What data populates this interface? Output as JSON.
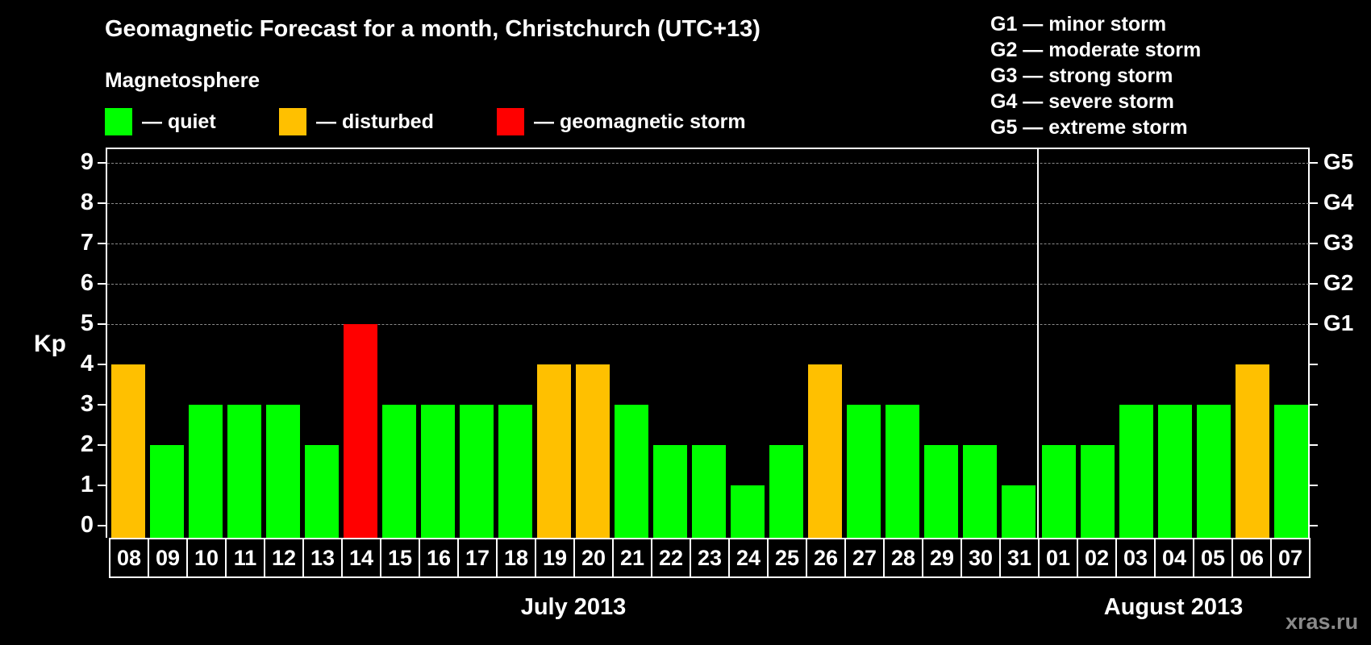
{
  "header": {
    "title": "Geomagnetic Forecast for a month, Christchurch (UTC+13)",
    "subtitle": "Magnetosphere"
  },
  "legend": [
    {
      "label": "— quiet",
      "color": "#00ff00"
    },
    {
      "label": "— disturbed",
      "color": "#ffc000"
    },
    {
      "label": "— geomagnetic storm",
      "color": "#ff0000"
    }
  ],
  "storm_scale": [
    "G1 — minor storm",
    "G2 — moderate storm",
    "G3 — strong storm",
    "G4 — severe storm",
    "G5 — extreme storm"
  ],
  "watermark": "xras.ru",
  "chart_data": {
    "type": "bar",
    "title": "Geomagnetic Forecast for a month, Christchurch (UTC+13)",
    "xlabel": "",
    "ylabel": "Kp",
    "ylim": [
      0,
      9
    ],
    "yticks": [
      0,
      1,
      2,
      3,
      4,
      5,
      6,
      7,
      8,
      9
    ],
    "right_axis_labels": [
      {
        "kp": 5,
        "label": "G1"
      },
      {
        "kp": 6,
        "label": "G2"
      },
      {
        "kp": 7,
        "label": "G3"
      },
      {
        "kp": 8,
        "label": "G4"
      },
      {
        "kp": 9,
        "label": "G5"
      }
    ],
    "grid": "dashed horizontal at Kp 5-9",
    "months": [
      {
        "label": "July 2013",
        "start_index": 0,
        "count": 24
      },
      {
        "label": "August 2013",
        "start_index": 24,
        "count": 7
      }
    ],
    "categories": [
      "08",
      "09",
      "10",
      "11",
      "12",
      "13",
      "14",
      "15",
      "16",
      "17",
      "18",
      "19",
      "20",
      "21",
      "22",
      "23",
      "24",
      "25",
      "26",
      "27",
      "28",
      "29",
      "30",
      "31",
      "01",
      "02",
      "03",
      "04",
      "05",
      "06",
      "07"
    ],
    "values": [
      4,
      2,
      3,
      3,
      3,
      2,
      5,
      3,
      3,
      3,
      3,
      4,
      4,
      3,
      2,
      2,
      1,
      2,
      4,
      3,
      3,
      2,
      2,
      1,
      2,
      2,
      3,
      3,
      3,
      4,
      3
    ],
    "status": [
      "disturbed",
      "quiet",
      "quiet",
      "quiet",
      "quiet",
      "quiet",
      "storm",
      "quiet",
      "quiet",
      "quiet",
      "quiet",
      "disturbed",
      "disturbed",
      "quiet",
      "quiet",
      "quiet",
      "quiet",
      "quiet",
      "disturbed",
      "quiet",
      "quiet",
      "quiet",
      "quiet",
      "quiet",
      "quiet",
      "quiet",
      "quiet",
      "quiet",
      "quiet",
      "disturbed",
      "quiet"
    ],
    "colors": {
      "quiet": "#00ff00",
      "disturbed": "#ffc000",
      "storm": "#ff0000"
    }
  }
}
